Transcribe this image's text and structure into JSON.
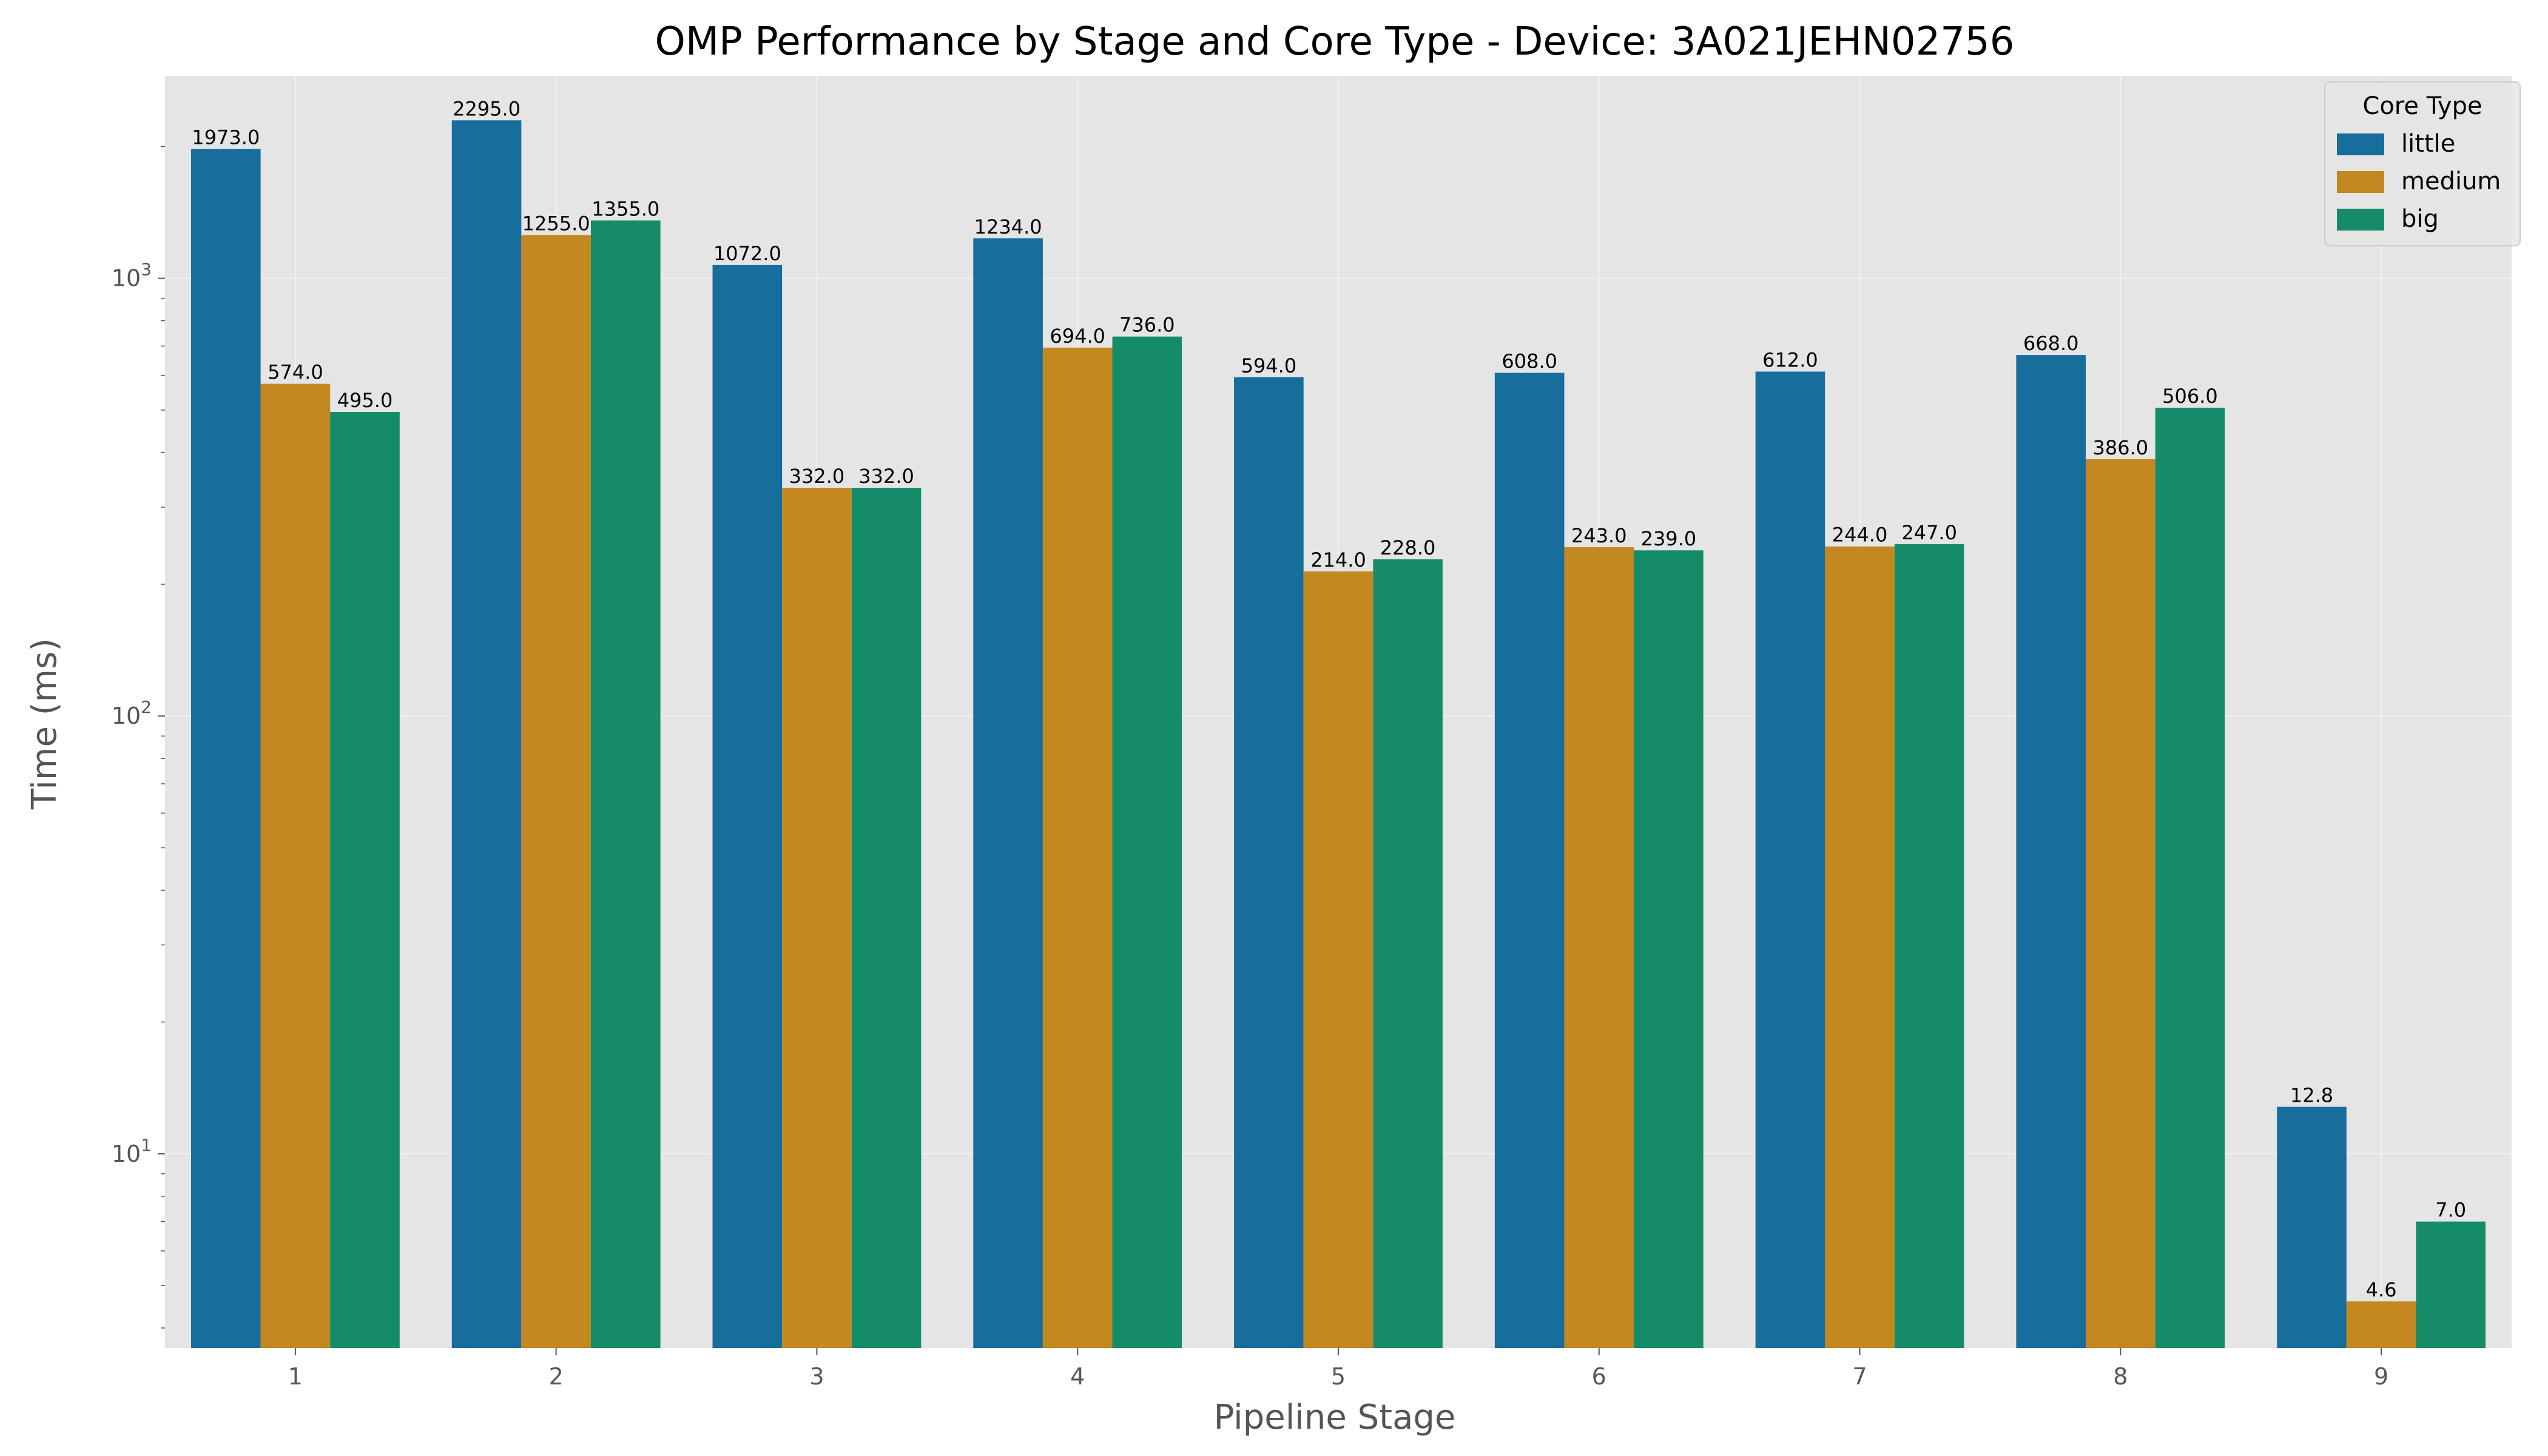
{
  "chart_data": {
    "type": "bar",
    "title": "OMP Performance by Stage and Core Type - Device: 3A021JEHN02756",
    "xlabel": "Pipeline Stage",
    "ylabel": "Time (ms)",
    "yscale": "log",
    "ylim": [
      3.6,
      2900
    ],
    "grid": true,
    "categories": [
      "1",
      "2",
      "3",
      "4",
      "5",
      "6",
      "7",
      "8",
      "9"
    ],
    "y_ticks": [
      {
        "value": 10,
        "base": "10",
        "exp": "1"
      },
      {
        "value": 100,
        "base": "10",
        "exp": "2"
      },
      {
        "value": 1000,
        "base": "10",
        "exp": "3"
      }
    ],
    "legend": {
      "title": "Core Type",
      "position": "top-right"
    },
    "series": [
      {
        "name": "little",
        "color": "#176d9c",
        "values": [
          1973.0,
          2295.0,
          1072.0,
          1234.0,
          594.0,
          608.0,
          612.0,
          668.0,
          12.8
        ],
        "labels": [
          "1973.0",
          "2295.0",
          "1072.0",
          "1234.0",
          "594.0",
          "608.0",
          "612.0",
          "668.0",
          "12.8"
        ]
      },
      {
        "name": "medium",
        "color": "#c38820",
        "values": [
          574.0,
          1255.0,
          332.0,
          694.0,
          214.0,
          243.0,
          244.0,
          386.0,
          4.6
        ],
        "labels": [
          "574.0",
          "1255.0",
          "332.0",
          "694.0",
          "214.0",
          "243.0",
          "244.0",
          "386.0",
          "4.6"
        ]
      },
      {
        "name": "big",
        "color": "#158b6a",
        "values": [
          495.0,
          1355.0,
          332.0,
          736.0,
          228.0,
          239.0,
          247.0,
          506.0,
          7.0
        ],
        "labels": [
          "495.0",
          "1355.0",
          "332.0",
          "736.0",
          "228.0",
          "239.0",
          "247.0",
          "506.0",
          "7.0"
        ]
      }
    ]
  }
}
